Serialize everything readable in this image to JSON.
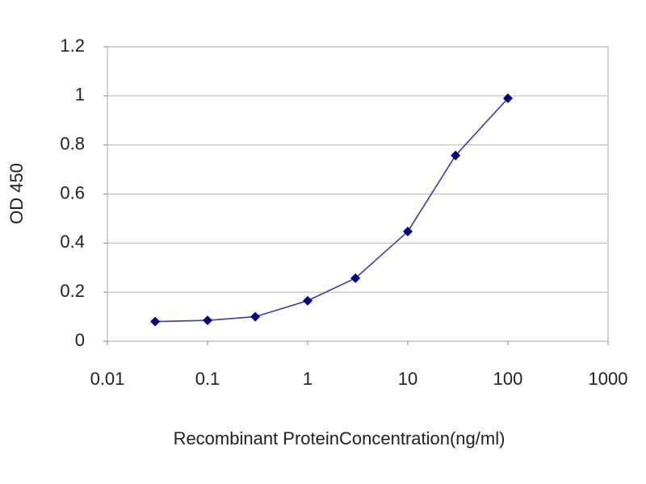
{
  "chart_data": {
    "type": "line",
    "x_label": "Recombinant ProteinConcentration(ng/ml)",
    "y_label": "OD 450",
    "x": [
      0.03,
      0.1,
      0.3,
      1,
      3,
      10,
      30,
      100
    ],
    "values": [
      0.08,
      0.085,
      0.1,
      0.165,
      0.257,
      0.447,
      0.757,
      0.99
    ],
    "color": "#000080",
    "line_color": "#3a3aa8",
    "xlog": true,
    "xlim": [
      0.01,
      1000
    ],
    "xticks": [
      0.01,
      0.1,
      1,
      10,
      100,
      1000
    ],
    "ylim": [
      0,
      1.2
    ],
    "yticks": [
      0,
      0.2,
      0.4,
      0.6,
      0.8,
      1,
      1.2
    ],
    "grid": true
  }
}
